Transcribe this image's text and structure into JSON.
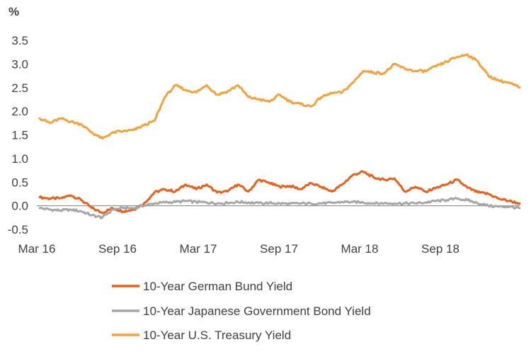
{
  "chart_data": {
    "type": "line",
    "ylabel": "%",
    "ylim": [
      -0.5,
      3.5
    ],
    "yticks": [
      "3.5",
      "3.0",
      "2.5",
      "2.0",
      "1.5",
      "1.0",
      "0.5",
      "0.0",
      "-0.5"
    ],
    "xticks": [
      "Mar 16",
      "Sep 16",
      "Mar 17",
      "Sep 17",
      "Mar 18",
      "Sep 18"
    ],
    "grid": false,
    "legend_position": "bottom",
    "series": [
      {
        "name": "10-Year German Bund Yield",
        "color": "#E8601C",
        "points": [
          [
            0,
            0.18
          ],
          [
            1,
            0.15
          ],
          [
            2,
            0.16
          ],
          [
            3,
            0.22
          ],
          [
            4,
            0.12
          ],
          [
            5,
            -0.05
          ],
          [
            6,
            -0.15
          ],
          [
            7,
            -0.05
          ],
          [
            8,
            -0.12
          ],
          [
            9,
            -0.08
          ],
          [
            10,
            0.05
          ],
          [
            11,
            0.28
          ],
          [
            12,
            0.35
          ],
          [
            13,
            0.3
          ],
          [
            14,
            0.45
          ],
          [
            15,
            0.35
          ],
          [
            16,
            0.45
          ],
          [
            17,
            0.28
          ],
          [
            18,
            0.3
          ],
          [
            19,
            0.45
          ],
          [
            20,
            0.3
          ],
          [
            21,
            0.55
          ],
          [
            22,
            0.48
          ],
          [
            23,
            0.4
          ],
          [
            24,
            0.42
          ],
          [
            25,
            0.35
          ],
          [
            26,
            0.48
          ],
          [
            27,
            0.4
          ],
          [
            28,
            0.3
          ],
          [
            29,
            0.45
          ],
          [
            30,
            0.65
          ],
          [
            31,
            0.72
          ],
          [
            32,
            0.6
          ],
          [
            33,
            0.55
          ],
          [
            34,
            0.58
          ],
          [
            35,
            0.3
          ],
          [
            36,
            0.4
          ],
          [
            37,
            0.3
          ],
          [
            38,
            0.38
          ],
          [
            39,
            0.45
          ],
          [
            40,
            0.55
          ],
          [
            41,
            0.38
          ],
          [
            42,
            0.28
          ],
          [
            43,
            0.25
          ],
          [
            44,
            0.15
          ],
          [
            45,
            0.1
          ],
          [
            46,
            0.05
          ]
        ]
      },
      {
        "name": "10-Year Japanese Government Bond Yield",
        "color": "#A6A6A6",
        "points": [
          [
            0,
            -0.05
          ],
          [
            1,
            -0.08
          ],
          [
            2,
            -0.1
          ],
          [
            3,
            -0.08
          ],
          [
            4,
            -0.12
          ],
          [
            5,
            -0.2
          ],
          [
            6,
            -0.25
          ],
          [
            7,
            -0.08
          ],
          [
            8,
            -0.05
          ],
          [
            9,
            -0.05
          ],
          [
            10,
            0.0
          ],
          [
            11,
            0.05
          ],
          [
            12,
            0.07
          ],
          [
            13,
            0.08
          ],
          [
            14,
            0.1
          ],
          [
            15,
            0.08
          ],
          [
            16,
            0.07
          ],
          [
            17,
            0.05
          ],
          [
            18,
            0.06
          ],
          [
            19,
            0.08
          ],
          [
            20,
            0.07
          ],
          [
            21,
            0.05
          ],
          [
            22,
            0.06
          ],
          [
            23,
            0.05
          ],
          [
            24,
            0.04
          ],
          [
            25,
            0.05
          ],
          [
            26,
            0.05
          ],
          [
            27,
            0.05
          ],
          [
            28,
            0.06
          ],
          [
            29,
            0.08
          ],
          [
            30,
            0.08
          ],
          [
            31,
            0.07
          ],
          [
            32,
            0.05
          ],
          [
            33,
            0.05
          ],
          [
            34,
            0.05
          ],
          [
            35,
            0.05
          ],
          [
            36,
            0.05
          ],
          [
            37,
            0.07
          ],
          [
            38,
            0.1
          ],
          [
            39,
            0.12
          ],
          [
            40,
            0.15
          ],
          [
            41,
            0.12
          ],
          [
            42,
            0.05
          ],
          [
            43,
            0.0
          ],
          [
            44,
            -0.02
          ],
          [
            45,
            -0.02
          ],
          [
            46,
            -0.05
          ]
        ]
      },
      {
        "name": "10-Year U.S. Treasury Yield",
        "color": "#F5A13E",
        "points": [
          [
            0,
            1.85
          ],
          [
            1,
            1.75
          ],
          [
            2,
            1.85
          ],
          [
            3,
            1.78
          ],
          [
            4,
            1.72
          ],
          [
            5,
            1.55
          ],
          [
            6,
            1.42
          ],
          [
            7,
            1.55
          ],
          [
            8,
            1.58
          ],
          [
            9,
            1.6
          ],
          [
            10,
            1.7
          ],
          [
            11,
            1.8
          ],
          [
            12,
            2.3
          ],
          [
            13,
            2.55
          ],
          [
            14,
            2.45
          ],
          [
            15,
            2.4
          ],
          [
            16,
            2.55
          ],
          [
            17,
            2.35
          ],
          [
            18,
            2.42
          ],
          [
            19,
            2.55
          ],
          [
            20,
            2.3
          ],
          [
            21,
            2.25
          ],
          [
            22,
            2.2
          ],
          [
            23,
            2.35
          ],
          [
            24,
            2.2
          ],
          [
            25,
            2.15
          ],
          [
            26,
            2.1
          ],
          [
            27,
            2.3
          ],
          [
            28,
            2.38
          ],
          [
            29,
            2.4
          ],
          [
            30,
            2.6
          ],
          [
            31,
            2.85
          ],
          [
            32,
            2.82
          ],
          [
            33,
            2.8
          ],
          [
            34,
            3.0
          ],
          [
            35,
            2.9
          ],
          [
            36,
            2.85
          ],
          [
            37,
            2.85
          ],
          [
            38,
            2.95
          ],
          [
            39,
            3.05
          ],
          [
            40,
            3.15
          ],
          [
            41,
            3.2
          ],
          [
            42,
            3.05
          ],
          [
            43,
            2.75
          ],
          [
            44,
            2.65
          ],
          [
            45,
            2.6
          ],
          [
            46,
            2.5
          ]
        ]
      }
    ]
  }
}
